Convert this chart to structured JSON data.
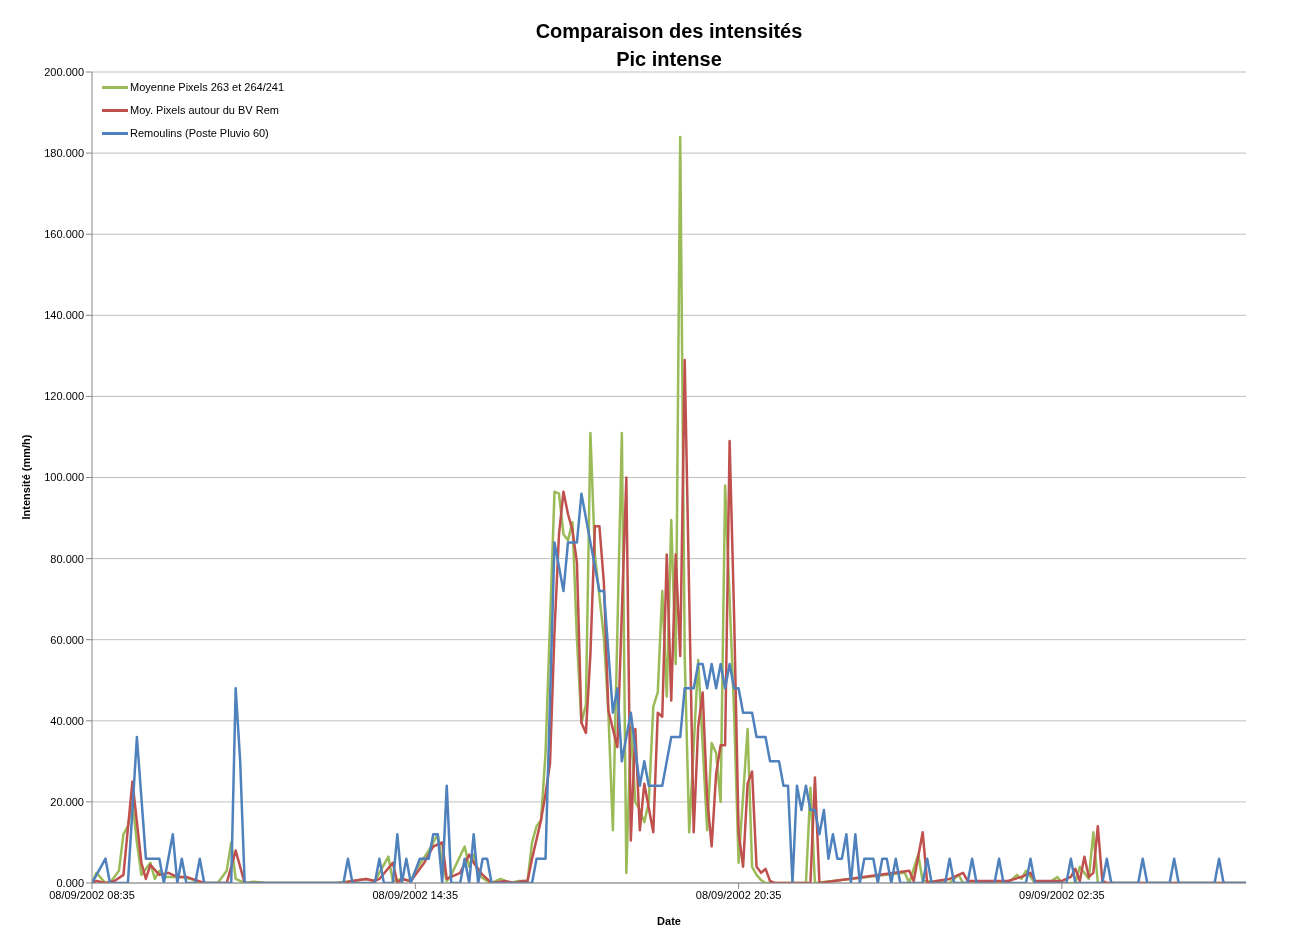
{
  "chart_data": {
    "type": "line",
    "title": "Comparaison des intensités",
    "subtitle": "Pic intense",
    "xlabel": "Date",
    "ylabel": "Intensité (mm/h)",
    "xlim": [
      "2002-09-08T08:35",
      "2002-09-09T06:00"
    ],
    "xticks": [
      {
        "value": "2002-09-08T08:35",
        "label": "08/09/2002 08:35"
      },
      {
        "value": "2002-09-08T14:35",
        "label": "08/09/2002 14:35"
      },
      {
        "value": "2002-09-08T20:35",
        "label": "08/09/2002 20:35"
      },
      {
        "value": "2002-09-09T02:35",
        "label": "09/09/2002 02:35"
      }
    ],
    "ylim": [
      0,
      200
    ],
    "yticks": [
      {
        "value": 0,
        "label": "0.000"
      },
      {
        "value": 20,
        "label": "20.000"
      },
      {
        "value": 40,
        "label": "40.000"
      },
      {
        "value": 60,
        "label": "60.000"
      },
      {
        "value": 80,
        "label": "80.000"
      },
      {
        "value": 100,
        "label": "100.000"
      },
      {
        "value": 120,
        "label": "120.000"
      },
      {
        "value": 140,
        "label": "140.000"
      },
      {
        "value": 160,
        "label": "160.000"
      },
      {
        "value": 180,
        "label": "180.000"
      },
      {
        "value": 200,
        "label": "200.000"
      }
    ],
    "grid": "y",
    "legend": "top left",
    "marker": "none",
    "line_style": "solid",
    "series": [
      {
        "name": "Moyenne Pixels 263 et 264/241",
        "color": "#9bbb59",
        "x": [
          "2002-09-08T08:35",
          "2002-09-08T08:40",
          "2002-09-08T08:50",
          "2002-09-08T08:55",
          "2002-09-08T09:05",
          "2002-09-08T09:10",
          "2002-09-08T09:15",
          "2002-09-08T09:20",
          "2002-09-08T09:25",
          "2002-09-08T09:30",
          "2002-09-08T09:40",
          "2002-09-08T09:45",
          "2002-09-08T09:50",
          "2002-09-08T09:55",
          "2002-09-08T10:05",
          "2002-09-08T10:15",
          "2002-09-08T10:25",
          "2002-09-08T10:35",
          "2002-09-08T10:55",
          "2002-09-08T11:05",
          "2002-09-08T11:10",
          "2002-09-08T11:15",
          "2002-09-08T11:25",
          "2002-09-08T11:35",
          "2002-09-08T11:50",
          "2002-09-08T13:05",
          "2002-09-08T13:25",
          "2002-09-08T13:40",
          "2002-09-08T13:50",
          "2002-09-08T14:05",
          "2002-09-08T14:10",
          "2002-09-08T14:20",
          "2002-09-08T14:30",
          "2002-09-08T14:35",
          "2002-09-08T14:50",
          "2002-09-08T15:00",
          "2002-09-08T15:05",
          "2002-09-08T15:10",
          "2002-09-08T15:15",
          "2002-09-08T15:30",
          "2002-09-08T15:35",
          "2002-09-08T15:40",
          "2002-09-08T15:45",
          "2002-09-08T15:55",
          "2002-09-08T16:00",
          "2002-09-08T16:10",
          "2002-09-08T16:20",
          "2002-09-08T16:30",
          "2002-09-08T16:40",
          "2002-09-08T16:45",
          "2002-09-08T16:50",
          "2002-09-08T16:55",
          "2002-09-08T17:00",
          "2002-09-08T17:10",
          "2002-09-08T17:15",
          "2002-09-08T17:20",
          "2002-09-08T17:25",
          "2002-09-08T17:30",
          "2002-09-08T17:35",
          "2002-09-08T17:40",
          "2002-09-08T17:45",
          "2002-09-08T17:50",
          "2002-09-08T17:55",
          "2002-09-08T18:05",
          "2002-09-08T18:10",
          "2002-09-08T18:15",
          "2002-09-08T18:25",
          "2002-09-08T18:30",
          "2002-09-08T18:35",
          "2002-09-08T18:40",
          "2002-09-08T18:45",
          "2002-09-08T18:50",
          "2002-09-08T18:55",
          "2002-09-08T19:00",
          "2002-09-08T19:05",
          "2002-09-08T19:10",
          "2002-09-08T19:15",
          "2002-09-08T19:20",
          "2002-09-08T19:25",
          "2002-09-08T19:30",
          "2002-09-08T19:35",
          "2002-09-08T19:40",
          "2002-09-08T19:50",
          "2002-09-08T20:00",
          "2002-09-08T20:05",
          "2002-09-08T20:10",
          "2002-09-08T20:15",
          "2002-09-08T20:20",
          "2002-09-08T20:30",
          "2002-09-08T20:35",
          "2002-09-08T20:45",
          "2002-09-08T20:50",
          "2002-09-08T20:55",
          "2002-09-08T21:00",
          "2002-09-08T21:05",
          "2002-09-08T21:50",
          "2002-09-08T21:55",
          "2002-09-08T22:00",
          "2002-09-08T23:40",
          "2002-09-08T23:45",
          "2002-09-08T23:55",
          "2002-09-09T00:00",
          "2002-09-09T00:30",
          "2002-09-09T00:40",
          "2002-09-09T00:45",
          "2002-09-09T01:35",
          "2002-09-09T01:45",
          "2002-09-09T01:50",
          "2002-09-09T01:55",
          "2002-09-09T02:05",
          "2002-09-09T02:20",
          "2002-09-09T02:30",
          "2002-09-09T02:35",
          "2002-09-09T02:50",
          "2002-09-09T02:55",
          "2002-09-09T03:05",
          "2002-09-09T03:10",
          "2002-09-09T03:15",
          "2002-09-09T06:00"
        ],
        "values": [
          0,
          2.5,
          0,
          0,
          3,
          12,
          14,
          20,
          10,
          2,
          5,
          1,
          3,
          1.5,
          1.5,
          1.5,
          1,
          0,
          0,
          3,
          10,
          1,
          0,
          0.3,
          0,
          0,
          0.5,
          1,
          0.5,
          6.5,
          0.5,
          1,
          0.5,
          3,
          8,
          12,
          5,
          0.5,
          2,
          9,
          4,
          7,
          2,
          0.5,
          0,
          1,
          0,
          0.5,
          0.5,
          10,
          14,
          15.5,
          32,
          96.5,
          96,
          86,
          84.5,
          89,
          60,
          39.5,
          44,
          111,
          81,
          60.5,
          42,
          13,
          111,
          2.5,
          38.5,
          20,
          18,
          15,
          20,
          43.5,
          47,
          72,
          46,
          89.5,
          54,
          184,
          56,
          12.5,
          55,
          13,
          34.5,
          32,
          20,
          98,
          42,
          5,
          38,
          4,
          2,
          0.7,
          0,
          0,
          23.5,
          0,
          2.5,
          0,
          7,
          0.5,
          0,
          2,
          0,
          0,
          2,
          1,
          3,
          0,
          0,
          1.5,
          0,
          0,
          4,
          1,
          12.5,
          0,
          0
        ]
      },
      {
        "name": "Moy. Pixels autour du BV Rem",
        "color": "#c0504d",
        "x": [
          "2002-09-08T08:35",
          "2002-09-08T08:40",
          "2002-09-08T08:50",
          "2002-09-08T09:00",
          "2002-09-08T09:10",
          "2002-09-08T09:20",
          "2002-09-08T09:25",
          "2002-09-08T09:30",
          "2002-09-08T09:35",
          "2002-09-08T09:40",
          "2002-09-08T09:50",
          "2002-09-08T10:00",
          "2002-09-08T10:10",
          "2002-09-08T10:20",
          "2002-09-08T10:40",
          "2002-09-08T11:05",
          "2002-09-08T11:15",
          "2002-09-08T11:25",
          "2002-09-08T13:15",
          "2002-09-08T13:25",
          "2002-09-08T13:40",
          "2002-09-08T13:50",
          "2002-09-08T13:55",
          "2002-09-08T14:10",
          "2002-09-08T14:15",
          "2002-09-08T14:20",
          "2002-09-08T14:30",
          "2002-09-08T14:45",
          "2002-09-08T14:55",
          "2002-09-08T15:05",
          "2002-09-08T15:10",
          "2002-09-08T15:15",
          "2002-09-08T15:25",
          "2002-09-08T15:35",
          "2002-09-08T15:40",
          "2002-09-08T15:50",
          "2002-09-08T16:00",
          "2002-09-08T16:15",
          "2002-09-08T16:25",
          "2002-09-08T16:35",
          "2002-09-08T16:40",
          "2002-09-08T16:45",
          "2002-09-08T16:55",
          "2002-09-08T17:00",
          "2002-09-08T17:05",
          "2002-09-08T17:10",
          "2002-09-08T17:15",
          "2002-09-08T17:20",
          "2002-09-08T17:25",
          "2002-09-08T17:30",
          "2002-09-08T17:35",
          "2002-09-08T17:40",
          "2002-09-08T17:45",
          "2002-09-08T17:50",
          "2002-09-08T17:55",
          "2002-09-08T18:00",
          "2002-09-08T18:05",
          "2002-09-08T18:10",
          "2002-09-08T18:20",
          "2002-09-08T18:30",
          "2002-09-08T18:35",
          "2002-09-08T18:40",
          "2002-09-08T18:45",
          "2002-09-08T18:50",
          "2002-09-08T19:00",
          "2002-09-08T19:05",
          "2002-09-08T19:10",
          "2002-09-08T19:15",
          "2002-09-08T19:20",
          "2002-09-08T19:25",
          "2002-09-08T19:30",
          "2002-09-08T19:35",
          "2002-09-08T19:45",
          "2002-09-08T19:50",
          "2002-09-08T19:55",
          "2002-09-08T20:00",
          "2002-09-08T20:05",
          "2002-09-08T20:10",
          "2002-09-08T20:15",
          "2002-09-08T20:20",
          "2002-09-08T20:25",
          "2002-09-08T20:30",
          "2002-09-08T20:35",
          "2002-09-08T20:40",
          "2002-09-08T20:45",
          "2002-09-08T20:50",
          "2002-09-08T20:55",
          "2002-09-08T21:00",
          "2002-09-08T21:05",
          "2002-09-08T21:10",
          "2002-09-08T21:15",
          "2002-09-08T21:55",
          "2002-09-08T22:00",
          "2002-09-08T22:05",
          "2002-09-08T23:45",
          "2002-09-08T23:50",
          "2002-09-09T00:00",
          "2002-09-09T00:05",
          "2002-09-09T00:15",
          "2002-09-09T00:30",
          "2002-09-09T00:45",
          "2002-09-09T00:50",
          "2002-09-09T01:35",
          "2002-09-09T01:50",
          "2002-09-09T02:00",
          "2002-09-09T02:05",
          "2002-09-09T02:35",
          "2002-09-09T02:45",
          "2002-09-09T02:50",
          "2002-09-09T02:55",
          "2002-09-09T03:00",
          "2002-09-09T03:05",
          "2002-09-09T03:10",
          "2002-09-09T03:15",
          "2002-09-09T03:20",
          "2002-09-09T03:25",
          "2002-09-09T06:00"
        ],
        "values": [
          0,
          0.5,
          0,
          0.5,
          2,
          25,
          15,
          5,
          1,
          4.5,
          2,
          2.5,
          1.5,
          1.5,
          0,
          0,
          8,
          0,
          0,
          0.5,
          1,
          0.5,
          1,
          5,
          0,
          1,
          0.5,
          5,
          9,
          10,
          1,
          1.5,
          2.5,
          7,
          5,
          2,
          0,
          0.5,
          0,
          0.5,
          0.5,
          6,
          15.5,
          22,
          29.5,
          62,
          86,
          96.5,
          91,
          87,
          79,
          39.5,
          37,
          56.5,
          88,
          88,
          74,
          42.5,
          33.5,
          100,
          10.5,
          38,
          13,
          24.5,
          12.5,
          42,
          41,
          81,
          45,
          81,
          56,
          129,
          12.5,
          38.5,
          47,
          21,
          9,
          27,
          34,
          34,
          109,
          66,
          12.5,
          4,
          24.5,
          27.5,
          4,
          2.5,
          3.5,
          0.5,
          0,
          0,
          26,
          0,
          3,
          0.5,
          12.5,
          0,
          0.5,
          1,
          2.5,
          0.5,
          0.5,
          1.5,
          2.5,
          0.5,
          0.5,
          1.5,
          3.5,
          0.5,
          6.5,
          1.5,
          2.5,
          14,
          0.5,
          0,
          0
        ]
      },
      {
        "name": "Remoulins (Poste Pluvio 60)",
        "color": "#4f81bd",
        "x": [
          "2002-09-08T08:35",
          "2002-09-08T08:50",
          "2002-09-08T08:55",
          "2002-09-08T09:15",
          "2002-09-08T09:25",
          "2002-09-08T09:35",
          "2002-09-08T09:50",
          "2002-09-08T09:55",
          "2002-09-08T10:05",
          "2002-09-08T10:10",
          "2002-09-08T10:15",
          "2002-09-08T10:20",
          "2002-09-08T10:30",
          "2002-09-08T10:35",
          "2002-09-08T10:40",
          "2002-09-08T11:10",
          "2002-09-08T11:15",
          "2002-09-08T11:20",
          "2002-09-08T11:25",
          "2002-09-08T13:15",
          "2002-09-08T13:20",
          "2002-09-08T13:25",
          "2002-09-08T13:50",
          "2002-09-08T13:55",
          "2002-09-08T14:00",
          "2002-09-08T14:10",
          "2002-09-08T14:15",
          "2002-09-08T14:20",
          "2002-09-08T14:25",
          "2002-09-08T14:30",
          "2002-09-08T14:40",
          "2002-09-08T14:50",
          "2002-09-08T14:55",
          "2002-09-08T15:00",
          "2002-09-08T15:05",
          "2002-09-08T15:10",
          "2002-09-08T15:15",
          "2002-09-08T15:25",
          "2002-09-08T15:30",
          "2002-09-08T15:35",
          "2002-09-08T15:40",
          "2002-09-08T15:45",
          "2002-09-08T15:50",
          "2002-09-08T15:55",
          "2002-09-08T16:00",
          "2002-09-08T16:45",
          "2002-09-08T16:50",
          "2002-09-08T17:00",
          "2002-09-08T17:10",
          "2002-09-08T17:20",
          "2002-09-08T17:25",
          "2002-09-08T17:35",
          "2002-09-08T17:40",
          "2002-09-08T17:50",
          "2002-09-08T18:00",
          "2002-09-08T18:05",
          "2002-09-08T18:15",
          "2002-09-08T18:20",
          "2002-09-08T18:25",
          "2002-09-08T18:35",
          "2002-09-08T18:45",
          "2002-09-08T18:50",
          "2002-09-08T18:55",
          "2002-09-08T19:10",
          "2002-09-08T19:20",
          "2002-09-08T19:30",
          "2002-09-08T19:35",
          "2002-09-08T19:45",
          "2002-09-08T19:50",
          "2002-09-08T19:55",
          "2002-09-08T20:00",
          "2002-09-08T20:05",
          "2002-09-08T20:10",
          "2002-09-08T20:15",
          "2002-09-08T20:20",
          "2002-09-08T20:25",
          "2002-09-08T20:30",
          "2002-09-08T20:35",
          "2002-09-08T20:40",
          "2002-09-08T20:50",
          "2002-09-08T20:55",
          "2002-09-08T21:05",
          "2002-09-08T21:10",
          "2002-09-08T21:20",
          "2002-09-08T21:25",
          "2002-09-08T21:30",
          "2002-09-08T21:35",
          "2002-09-08T21:40",
          "2002-09-08T21:45",
          "2002-09-08T21:50",
          "2002-09-08T21:55",
          "2002-09-08T22:00",
          "2002-09-08T22:05",
          "2002-09-08T22:10",
          "2002-09-08T22:15",
          "2002-09-08T22:20",
          "2002-09-08T22:25",
          "2002-09-08T22:30",
          "2002-09-08T22:35",
          "2002-09-08T22:40",
          "2002-09-08T22:45",
          "2002-09-08T22:50",
          "2002-09-08T22:55",
          "2002-09-08T23:05",
          "2002-09-08T23:10",
          "2002-09-08T23:15",
          "2002-09-08T23:20",
          "2002-09-08T23:25",
          "2002-09-08T23:30",
          "2002-09-08T23:35",
          "2002-09-09T00:00",
          "2002-09-09T00:05",
          "2002-09-09T00:10",
          "2002-09-09T00:25",
          "2002-09-09T00:30",
          "2002-09-09T00:35",
          "2002-09-09T00:50",
          "2002-09-09T00:55",
          "2002-09-09T01:00",
          "2002-09-09T01:20",
          "2002-09-09T01:25",
          "2002-09-09T01:30",
          "2002-09-09T01:55",
          "2002-09-09T02:00",
          "2002-09-09T02:05",
          "2002-09-09T02:40",
          "2002-09-09T02:45",
          "2002-09-09T02:50",
          "2002-09-09T03:20",
          "2002-09-09T03:25",
          "2002-09-09T03:30",
          "2002-09-09T04:00",
          "2002-09-09T04:05",
          "2002-09-09T04:10",
          "2002-09-09T04:35",
          "2002-09-09T04:40",
          "2002-09-09T04:45",
          "2002-09-09T05:25",
          "2002-09-09T05:30",
          "2002-09-09T05:35",
          "2002-09-09T06:00"
        ],
        "values": [
          0,
          6,
          0,
          0,
          36,
          6,
          6,
          0,
          12,
          0,
          6,
          0,
          0,
          6,
          0,
          0,
          48,
          30,
          0,
          0,
          6,
          0,
          0,
          6,
          0,
          0,
          12,
          0,
          6,
          0,
          6,
          6,
          12,
          12,
          0,
          24,
          0,
          0,
          6,
          0,
          12,
          0,
          6,
          6,
          0,
          0,
          6,
          6,
          84,
          72,
          84,
          84,
          96,
          84,
          72,
          72,
          42,
          48,
          30,
          42,
          24,
          30,
          24,
          24,
          36,
          36,
          48,
          48,
          54,
          54,
          48,
          54,
          48,
          54,
          48,
          54,
          48,
          48,
          42,
          42,
          36,
          36,
          30,
          30,
          24,
          24,
          0,
          24,
          18,
          24,
          18,
          18,
          12,
          18,
          6,
          12,
          6,
          6,
          12,
          0,
          12,
          0,
          6,
          6,
          0,
          6,
          6,
          0,
          6,
          0,
          0,
          6,
          0,
          0,
          6,
          0,
          0,
          6,
          0,
          0,
          6,
          0,
          0,
          6,
          0,
          0,
          6,
          0,
          0,
          6,
          0,
          0,
          6,
          0,
          0,
          6,
          0,
          0,
          6,
          0,
          0
        ]
      }
    ]
  }
}
